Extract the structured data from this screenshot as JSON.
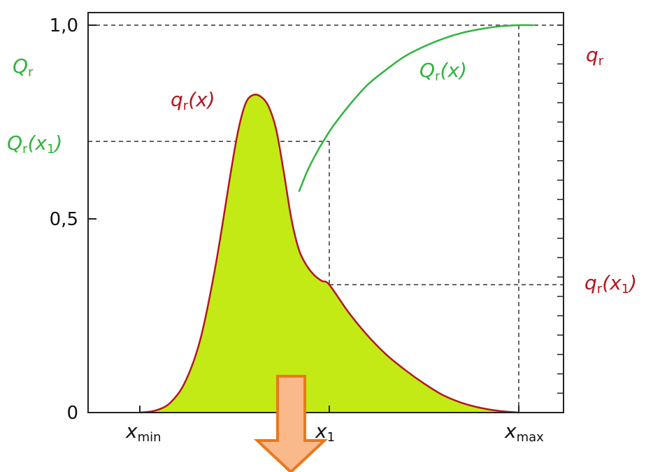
{
  "chart_data": {
    "type": "area",
    "y_tick_labels": [
      {
        "value": 0,
        "label": "0"
      },
      {
        "value": 0.5,
        "label": "0,5"
      },
      {
        "value": 1.0,
        "label": "1,0"
      }
    ],
    "x_tick_labels": [
      {
        "value": 0.0,
        "main": "x",
        "sub": "min"
      },
      {
        "value": 0.5,
        "main": "x",
        "sub": "1"
      },
      {
        "value": 1.0,
        "main": "x",
        "sub": "max"
      }
    ],
    "ylim": [
      0,
      1.0
    ],
    "xlim": [
      -0.15,
      1.1
    ],
    "right_axis_minor_ticks": 20,
    "series": [
      {
        "kind": "density",
        "label_main": "q",
        "label_sub": "r",
        "label_arg": "(x)",
        "color": "#b3161e",
        "fill": "#c3ea14",
        "x": [
          0.0,
          0.04,
          0.08,
          0.12,
          0.16,
          0.2,
          0.24,
          0.26,
          0.28,
          0.3,
          0.32,
          0.34,
          0.36,
          0.38,
          0.4,
          0.42,
          0.44,
          0.46,
          0.48,
          0.5,
          0.55,
          0.6,
          0.65,
          0.7,
          0.75,
          0.8,
          0.85,
          0.9,
          0.95,
          1.0
        ],
        "y": [
          0.0,
          0.005,
          0.025,
          0.08,
          0.19,
          0.38,
          0.62,
          0.73,
          0.8,
          0.82,
          0.815,
          0.79,
          0.73,
          0.62,
          0.5,
          0.42,
          0.38,
          0.355,
          0.34,
          0.33,
          0.26,
          0.2,
          0.15,
          0.11,
          0.075,
          0.045,
          0.025,
          0.012,
          0.004,
          0.0
        ]
      },
      {
        "kind": "cumulative",
        "label_main": "Q",
        "label_sub": "r",
        "label_arg": "(x)",
        "color": "#2fb43c",
        "x": [
          0.42,
          0.45,
          0.5,
          0.55,
          0.6,
          0.65,
          0.7,
          0.75,
          0.8,
          0.85,
          0.9,
          0.95,
          1.0,
          1.04
        ],
        "y": [
          0.57,
          0.64,
          0.725,
          0.79,
          0.845,
          0.885,
          0.92,
          0.945,
          0.965,
          0.98,
          0.99,
          0.997,
          1.0,
          1.0
        ]
      }
    ],
    "annotations": {
      "left_axis_title": {
        "main": "Q",
        "sub": "r",
        "color": "#2fb43c"
      },
      "right_axis_title": {
        "main": "q",
        "sub": "r",
        "color": "#b3161e"
      },
      "left_value_label": {
        "main": "Q",
        "sub": "r",
        "arg_open": "(x",
        "arg_sub": "1",
        "arg_close": ")",
        "color": "#2fb43c",
        "value": 0.7
      },
      "right_value_label": {
        "main": "q",
        "sub": "r",
        "arg_open": "(x",
        "arg_sub": "1",
        "arg_close": ")",
        "color": "#b3161e",
        "value": 0.33
      },
      "x1_value": 0.5,
      "xmax_value": 1.0
    },
    "arrow": {
      "fill": "#f9b98a",
      "stroke": "#e9781f",
      "direction": "down"
    }
  }
}
